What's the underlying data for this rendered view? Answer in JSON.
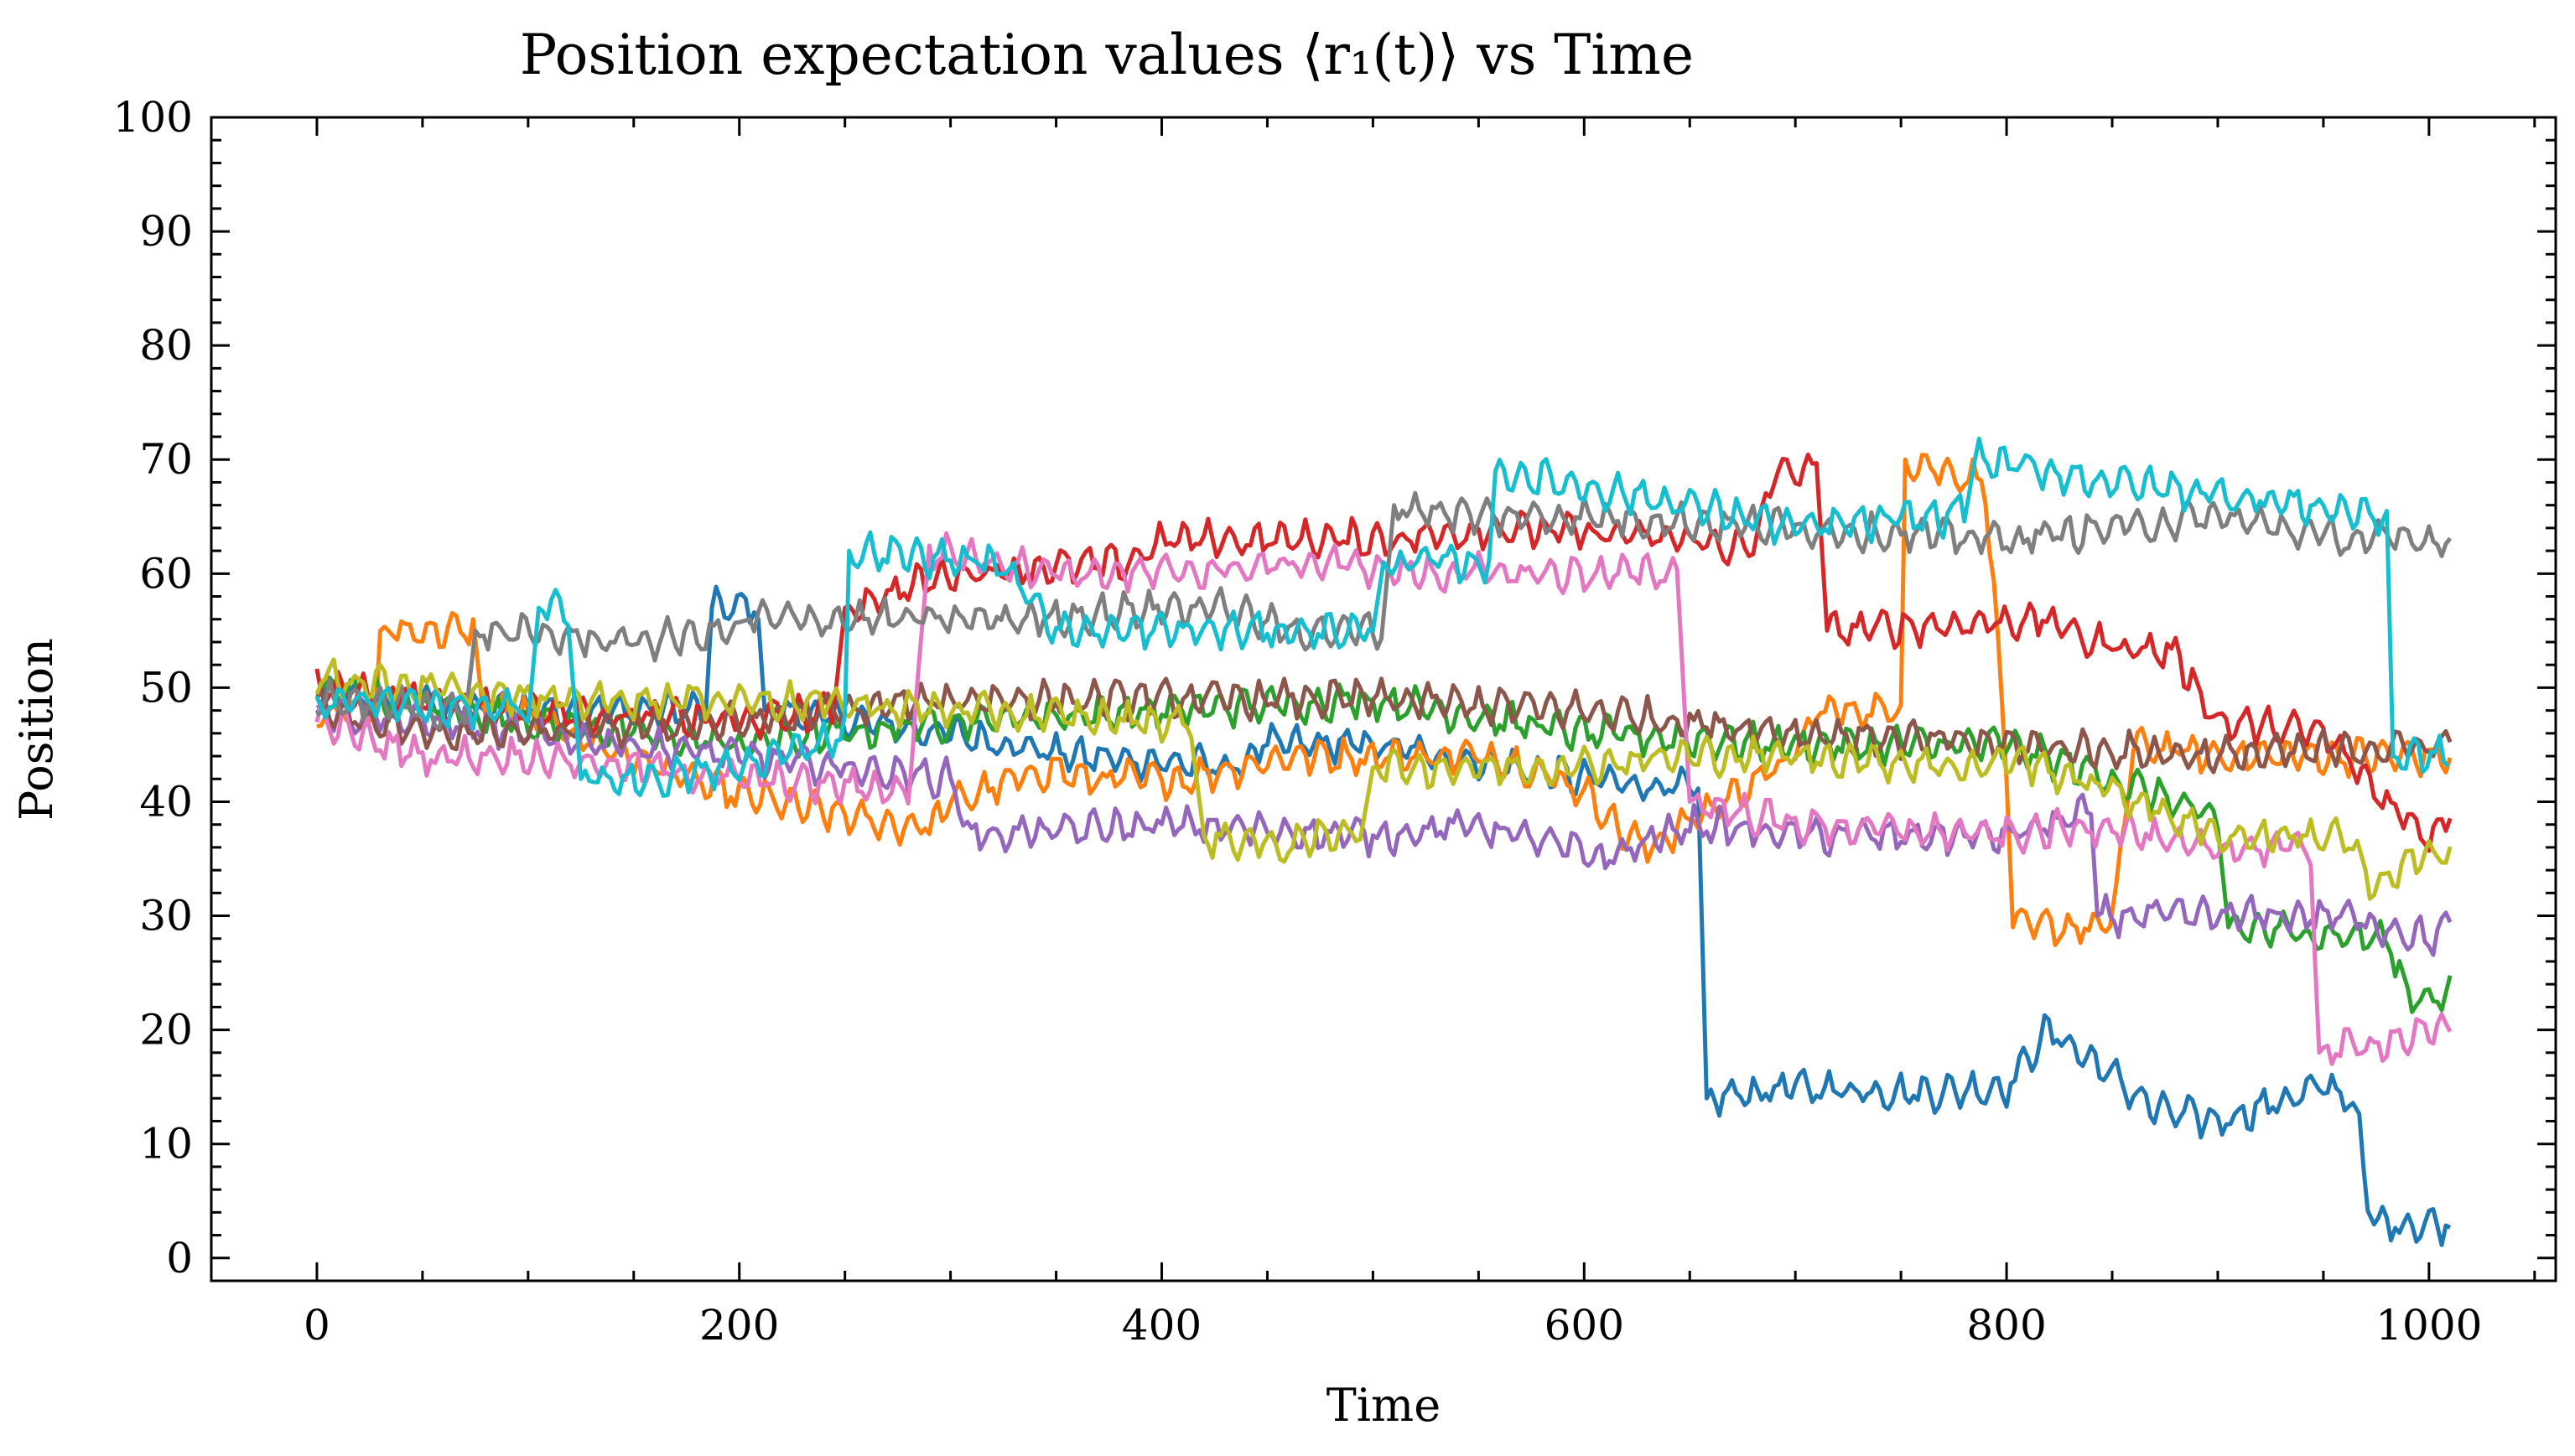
{
  "chart_data": {
    "type": "line",
    "title": "Position expectation values ⟨r₁(t)⟩ vs Time",
    "xlabel": "Time",
    "ylabel": "Position",
    "xlim": [
      -50,
      1060
    ],
    "ylim": [
      -2,
      100
    ],
    "xticks": [
      0,
      200,
      400,
      600,
      800,
      1000
    ],
    "xtick_labels": [
      "0",
      "200",
      "400",
      "600",
      "800",
      "1000"
    ],
    "yticks": [
      0,
      10,
      20,
      30,
      40,
      50,
      60,
      70,
      80,
      90,
      100
    ],
    "ytick_labels": [
      "0",
      "10",
      "20",
      "30",
      "40",
      "50",
      "60",
      "70",
      "80",
      "90",
      "100"
    ],
    "grid": false,
    "legend": "none",
    "series": [
      {
        "color": "#1f77b4",
        "points": [
          [
            0,
            49
          ],
          [
            100,
            48
          ],
          [
            185,
            48
          ],
          [
            187,
            57
          ],
          [
            210,
            57
          ],
          [
            212,
            48
          ],
          [
            300,
            46
          ],
          [
            360,
            44
          ],
          [
            440,
            43
          ],
          [
            442,
            45
          ],
          [
            500,
            45
          ],
          [
            600,
            42
          ],
          [
            655,
            41
          ],
          [
            658,
            14
          ],
          [
            700,
            15
          ],
          [
            760,
            14.5
          ],
          [
            800,
            15
          ],
          [
            820,
            20
          ],
          [
            850,
            16
          ],
          [
            870,
            13
          ],
          [
            900,
            12
          ],
          [
            950,
            15
          ],
          [
            965,
            14
          ],
          [
            972,
            3
          ],
          [
            1010,
            3
          ]
        ]
      },
      {
        "color": "#ff7f0e",
        "points": [
          [
            0,
            48
          ],
          [
            28,
            48
          ],
          [
            30,
            55
          ],
          [
            75,
            55
          ],
          [
            78,
            49
          ],
          [
            190,
            41
          ],
          [
            270,
            38
          ],
          [
            292,
            38
          ],
          [
            300,
            40
          ],
          [
            350,
            43
          ],
          [
            360,
            42
          ],
          [
            410,
            42
          ],
          [
            460,
            44
          ],
          [
            560,
            44
          ],
          [
            600,
            41
          ],
          [
            620,
            37
          ],
          [
            630,
            36
          ],
          [
            700,
            44
          ],
          [
            710,
            48
          ],
          [
            750,
            48
          ],
          [
            752,
            70
          ],
          [
            790,
            68
          ],
          [
            800,
            43
          ],
          [
            803,
            29
          ],
          [
            850,
            29
          ],
          [
            860,
            45
          ],
          [
            900,
            44
          ],
          [
            1010,
            44
          ]
        ]
      },
      {
        "color": "#2ca02c",
        "points": [
          [
            0,
            50
          ],
          [
            100,
            47
          ],
          [
            200,
            45
          ],
          [
            300,
            47
          ],
          [
            400,
            48
          ],
          [
            500,
            49
          ],
          [
            600,
            46
          ],
          [
            700,
            45
          ],
          [
            800,
            45
          ],
          [
            850,
            42
          ],
          [
            880,
            40
          ],
          [
            900,
            38
          ],
          [
            905,
            29
          ],
          [
            980,
            28
          ],
          [
            990,
            23
          ],
          [
            1010,
            23
          ]
        ]
      },
      {
        "color": "#d62728",
        "points": [
          [
            0,
            50
          ],
          [
            100,
            48
          ],
          [
            200,
            47
          ],
          [
            245,
            48
          ],
          [
            250,
            57
          ],
          [
            300,
            60
          ],
          [
            385,
            61
          ],
          [
            400,
            63
          ],
          [
            510,
            63
          ],
          [
            560,
            64
          ],
          [
            650,
            63
          ],
          [
            680,
            62
          ],
          [
            690,
            69
          ],
          [
            710,
            69
          ],
          [
            715,
            55
          ],
          [
            820,
            56
          ],
          [
            840,
            54
          ],
          [
            880,
            53
          ],
          [
            900,
            47
          ],
          [
            950,
            46
          ],
          [
            980,
            40
          ],
          [
            1000,
            37
          ],
          [
            1010,
            39
          ]
        ]
      },
      {
        "color": "#9467bd",
        "points": [
          [
            0,
            48
          ],
          [
            100,
            46
          ],
          [
            200,
            44
          ],
          [
            300,
            42
          ],
          [
            310,
            37
          ],
          [
            400,
            38
          ],
          [
            500,
            37
          ],
          [
            550,
            38
          ],
          [
            610,
            35
          ],
          [
            650,
            38
          ],
          [
            700,
            37
          ],
          [
            800,
            37
          ],
          [
            840,
            39
          ],
          [
            843,
            30
          ],
          [
            900,
            30
          ],
          [
            960,
            30
          ],
          [
            1000,
            28
          ],
          [
            1010,
            29
          ]
        ]
      },
      {
        "color": "#8c564b",
        "points": [
          [
            0,
            48
          ],
          [
            50,
            46
          ],
          [
            100,
            46
          ],
          [
            200,
            47
          ],
          [
            300,
            49
          ],
          [
            400,
            49
          ],
          [
            500,
            49
          ],
          [
            600,
            48
          ],
          [
            650,
            47
          ],
          [
            700,
            46
          ],
          [
            800,
            45
          ],
          [
            900,
            44
          ],
          [
            1010,
            45
          ]
        ]
      },
      {
        "color": "#e377c2",
        "points": [
          [
            0,
            47
          ],
          [
            50,
            44
          ],
          [
            100,
            44
          ],
          [
            200,
            42
          ],
          [
            280,
            41
          ],
          [
            290,
            62
          ],
          [
            360,
            60
          ],
          [
            400,
            60
          ],
          [
            480,
            61
          ],
          [
            520,
            60
          ],
          [
            600,
            60
          ],
          [
            645,
            60
          ],
          [
            650,
            40
          ],
          [
            700,
            38
          ],
          [
            800,
            37
          ],
          [
            850,
            38
          ],
          [
            880,
            36
          ],
          [
            945,
            36
          ],
          [
            948,
            18
          ],
          [
            1010,
            20
          ]
        ]
      },
      {
        "color": "#7f7f7f",
        "points": [
          [
            0,
            49
          ],
          [
            70,
            48
          ],
          [
            75,
            55
          ],
          [
            150,
            54
          ],
          [
            200,
            55
          ],
          [
            205,
            56
          ],
          [
            300,
            56
          ],
          [
            340,
            56
          ],
          [
            400,
            57
          ],
          [
            430,
            57
          ],
          [
            460,
            55
          ],
          [
            505,
            55
          ],
          [
            510,
            66
          ],
          [
            550,
            65
          ],
          [
            600,
            65
          ],
          [
            700,
            64
          ],
          [
            800,
            63
          ],
          [
            900,
            65
          ],
          [
            960,
            63
          ],
          [
            1010,
            63
          ]
        ]
      },
      {
        "color": "#bcbd22",
        "points": [
          [
            0,
            51
          ],
          [
            100,
            49
          ],
          [
            200,
            49
          ],
          [
            300,
            48
          ],
          [
            400,
            47
          ],
          [
            415,
            47
          ],
          [
            420,
            37
          ],
          [
            460,
            36
          ],
          [
            495,
            38
          ],
          [
            500,
            43
          ],
          [
            580,
            43
          ],
          [
            650,
            44
          ],
          [
            700,
            44
          ],
          [
            790,
            43
          ],
          [
            800,
            44
          ],
          [
            850,
            41
          ],
          [
            900,
            37
          ],
          [
            960,
            37
          ],
          [
            975,
            32
          ],
          [
            990,
            35
          ],
          [
            1010,
            35
          ]
        ]
      },
      {
        "color": "#17becf",
        "points": [
          [
            0,
            49
          ],
          [
            95,
            48
          ],
          [
            100,
            47
          ],
          [
            105,
            57
          ],
          [
            120,
            57
          ],
          [
            125,
            42
          ],
          [
            160,
            42
          ],
          [
            200,
            43
          ],
          [
            250,
            46
          ],
          [
            252,
            62
          ],
          [
            320,
            61
          ],
          [
            340,
            58
          ],
          [
            350,
            55
          ],
          [
            400,
            55
          ],
          [
            450,
            55
          ],
          [
            500,
            55
          ],
          [
            505,
            61
          ],
          [
            555,
            61
          ],
          [
            558,
            69
          ],
          [
            650,
            66
          ],
          [
            700,
            64
          ],
          [
            770,
            65
          ],
          [
            780,
            66
          ],
          [
            785,
            70
          ],
          [
            850,
            68
          ],
          [
            900,
            67
          ],
          [
            980,
            65
          ],
          [
            983,
            44
          ],
          [
            1010,
            44
          ]
        ]
      }
    ]
  }
}
